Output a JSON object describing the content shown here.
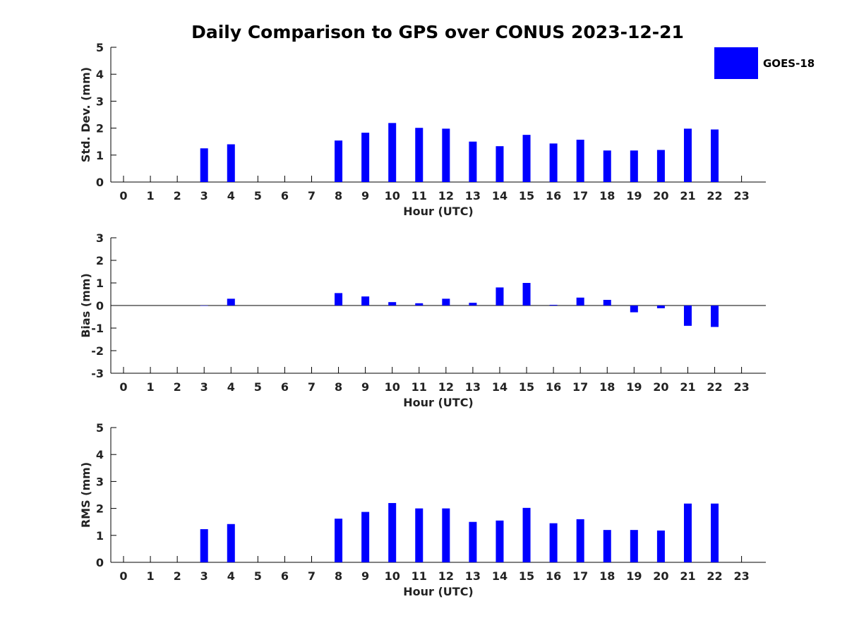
{
  "title": "Daily Comparison to GPS over CONUS 2023-12-21",
  "legend": {
    "label": "GOES-18",
    "color": "#0000ff",
    "placement": "top-right"
  },
  "chart_data": [
    {
      "type": "bar",
      "ylabel": "Std. Dev. (mm)",
      "xlabel": "Hour (UTC)",
      "ylim": [
        0,
        5
      ],
      "yticks": [
        0,
        1,
        2,
        3,
        4,
        5
      ],
      "categories": [
        0,
        1,
        2,
        3,
        4,
        5,
        6,
        7,
        8,
        9,
        10,
        11,
        12,
        13,
        14,
        15,
        16,
        17,
        18,
        19,
        20,
        21,
        22,
        23
      ],
      "series": [
        {
          "name": "GOES-18",
          "color": "#0000ff",
          "values": [
            null,
            null,
            null,
            1.25,
            1.4,
            null,
            null,
            null,
            1.54,
            1.83,
            2.19,
            2.01,
            1.98,
            1.5,
            1.33,
            1.75,
            1.43,
            1.57,
            1.17,
            1.17,
            1.19,
            1.98,
            1.95,
            null
          ]
        }
      ]
    },
    {
      "type": "bar",
      "ylabel": "Bias (mm)",
      "xlabel": "Hour (UTC)",
      "ylim": [
        -3,
        3
      ],
      "yticks": [
        -3,
        -2,
        -1,
        0,
        1,
        2,
        3
      ],
      "categories": [
        0,
        1,
        2,
        3,
        4,
        5,
        6,
        7,
        8,
        9,
        10,
        11,
        12,
        13,
        14,
        15,
        16,
        17,
        18,
        19,
        20,
        21,
        22,
        23
      ],
      "series": [
        {
          "name": "GOES-18",
          "color": "#0000ff",
          "values": [
            null,
            null,
            null,
            0.0,
            0.3,
            null,
            null,
            null,
            0.55,
            0.4,
            0.15,
            0.1,
            0.3,
            0.12,
            0.8,
            1.0,
            0.03,
            0.35,
            0.25,
            -0.3,
            -0.12,
            -0.9,
            -0.95,
            null
          ]
        }
      ]
    },
    {
      "type": "bar",
      "ylabel": "RMS (mm)",
      "xlabel": "Hour (UTC)",
      "ylim": [
        0,
        5
      ],
      "yticks": [
        0,
        1,
        2,
        3,
        4,
        5
      ],
      "categories": [
        0,
        1,
        2,
        3,
        4,
        5,
        6,
        7,
        8,
        9,
        10,
        11,
        12,
        13,
        14,
        15,
        16,
        17,
        18,
        19,
        20,
        21,
        22,
        23
      ],
      "series": [
        {
          "name": "GOES-18",
          "color": "#0000ff",
          "values": [
            null,
            null,
            null,
            1.23,
            1.42,
            null,
            null,
            null,
            1.62,
            1.87,
            2.2,
            2.0,
            2.0,
            1.5,
            1.55,
            2.02,
            1.45,
            1.6,
            1.2,
            1.2,
            1.18,
            2.18,
            2.18,
            null
          ]
        }
      ]
    }
  ]
}
